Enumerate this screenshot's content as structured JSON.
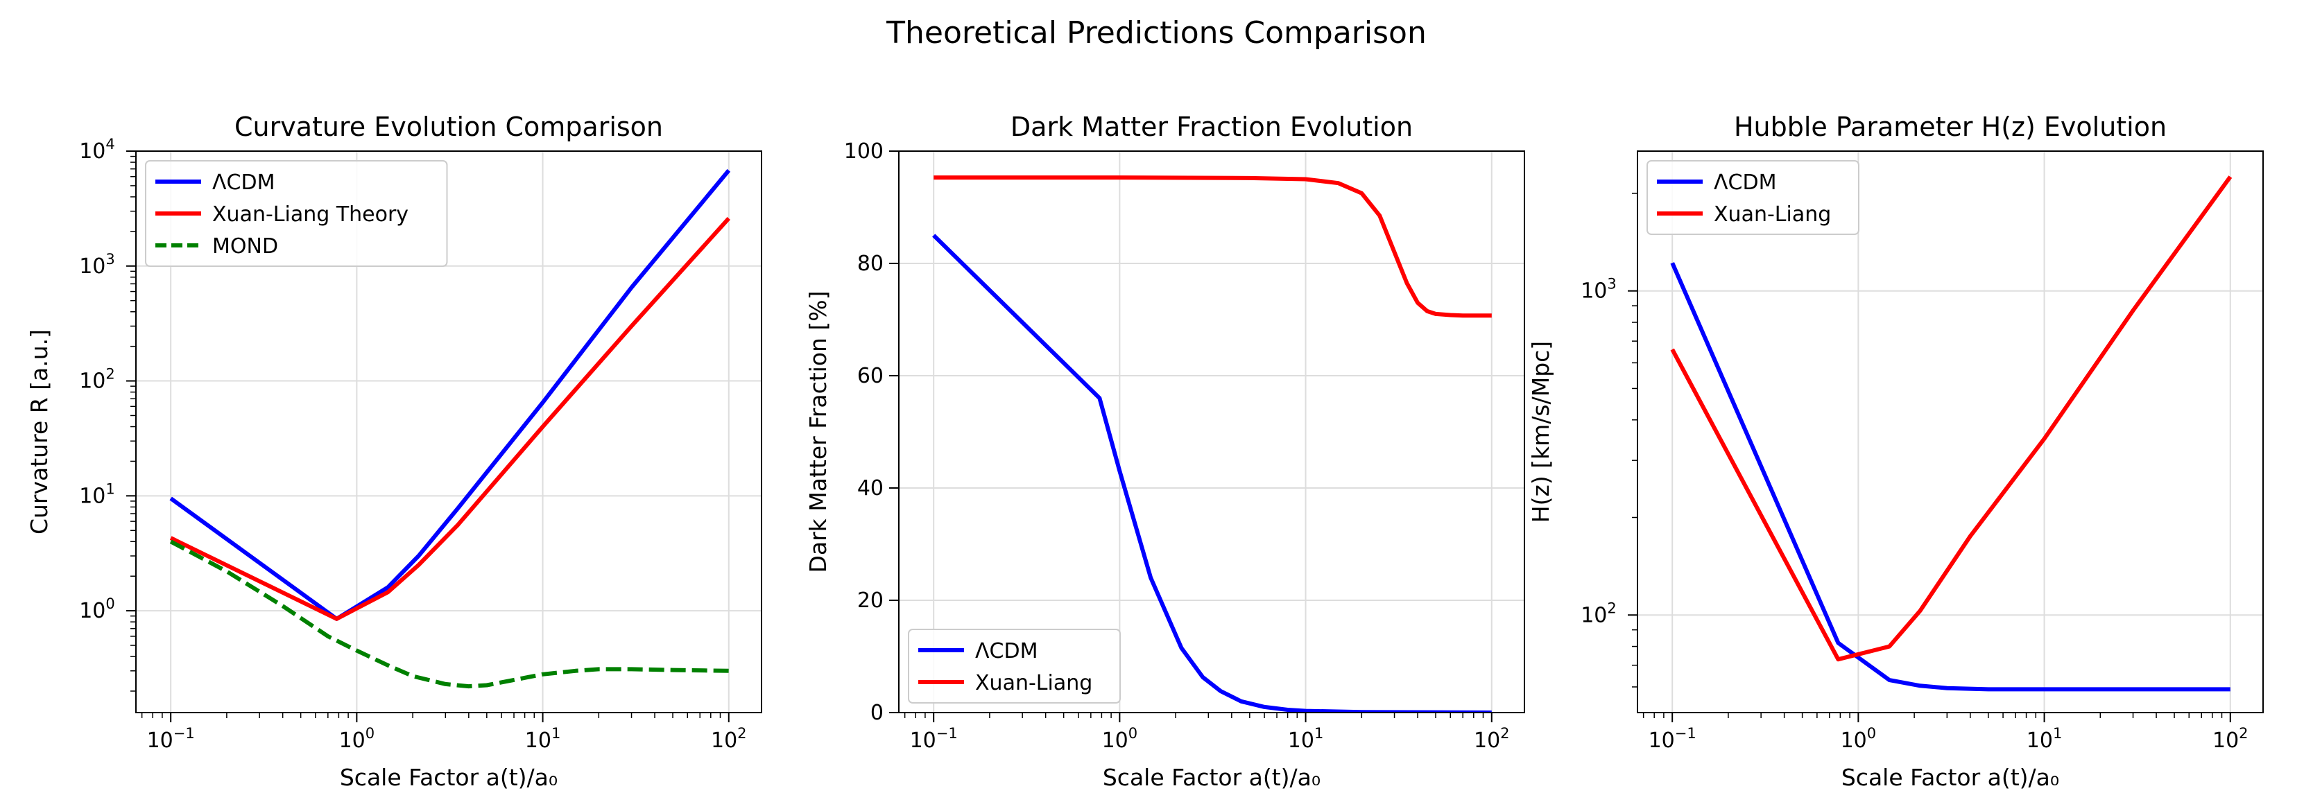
{
  "suptitle": "Theoretical Predictions Comparison",
  "colors": {
    "lcdm": "#0000ff",
    "xuan": "#ff0000",
    "mond": "#008000",
    "grid": "#dddddd"
  },
  "chart_data": [
    {
      "type": "line",
      "title": "Curvature Evolution Comparison",
      "xlabel": "Scale Factor a(t)/a₀",
      "ylabel": "Curvature R [a.u.]",
      "xscale": "log",
      "yscale": "log",
      "xlim": [
        0.065,
        150
      ],
      "ylim": [
        0.13,
        10000
      ],
      "xticks": [
        {
          "v": 0.1,
          "b": "10",
          "e": "−1"
        },
        {
          "v": 1,
          "b": "10",
          "e": "0"
        },
        {
          "v": 10,
          "b": "10",
          "e": "1"
        },
        {
          "v": 100,
          "b": "10",
          "e": "2"
        }
      ],
      "yticks": [
        {
          "v": 1,
          "b": "10",
          "e": "0"
        },
        {
          "v": 10,
          "b": "10",
          "e": "1"
        },
        {
          "v": 100,
          "b": "10",
          "e": "2"
        },
        {
          "v": 1000,
          "b": "10",
          "e": "3"
        },
        {
          "v": 10000,
          "b": "10",
          "e": "4"
        }
      ],
      "grid": true,
      "legend": "upper left",
      "series": [
        {
          "name": "ΛCDM",
          "color": "#0000ff",
          "dash": "solid",
          "x": [
            0.1,
            0.78,
            1.47,
            2.15,
            3.5,
            10,
            30,
            100
          ],
          "y": [
            9.5,
            0.85,
            1.6,
            3.0,
            7.8,
            65,
            650,
            6800
          ]
        },
        {
          "name": "Xuan-Liang Theory",
          "color": "#ff0000",
          "dash": "solid",
          "x": [
            0.1,
            0.78,
            1.47,
            2.15,
            3.5,
            10,
            30,
            100
          ],
          "y": [
            4.3,
            0.85,
            1.45,
            2.5,
            5.6,
            40,
            300,
            2600
          ]
        },
        {
          "name": "MOND",
          "color": "#008000",
          "dash": "dashed",
          "x": [
            0.1,
            0.2,
            0.4,
            0.7,
            1,
            1.5,
            2,
            3,
            4,
            5,
            7,
            10,
            15,
            20,
            30,
            50,
            100
          ],
          "y": [
            4.0,
            2.2,
            1.1,
            0.6,
            0.45,
            0.33,
            0.27,
            0.23,
            0.22,
            0.225,
            0.25,
            0.28,
            0.3,
            0.31,
            0.31,
            0.305,
            0.3
          ]
        }
      ]
    },
    {
      "type": "line",
      "title": "Dark Matter Fraction Evolution",
      "xlabel": "Scale Factor a(t)/a₀",
      "ylabel": "Dark Matter Fraction [%]",
      "xscale": "log",
      "yscale": "linear",
      "xlim": [
        0.065,
        150
      ],
      "ylim": [
        0,
        100
      ],
      "xticks": [
        {
          "v": 0.1,
          "b": "10",
          "e": "−1"
        },
        {
          "v": 1,
          "b": "10",
          "e": "0"
        },
        {
          "v": 10,
          "b": "10",
          "e": "1"
        },
        {
          "v": 100,
          "b": "10",
          "e": "2"
        }
      ],
      "yticks": [
        {
          "v": 0,
          "t": "0"
        },
        {
          "v": 20,
          "t": "20"
        },
        {
          "v": 40,
          "t": "40"
        },
        {
          "v": 60,
          "t": "60"
        },
        {
          "v": 80,
          "t": "80"
        },
        {
          "v": 100,
          "t": "100"
        }
      ],
      "grid": true,
      "legend": "lower left",
      "series": [
        {
          "name": "ΛCDM",
          "color": "#0000ff",
          "dash": "solid",
          "x": [
            0.1,
            0.78,
            1.0,
            1.47,
            2.15,
            2.8,
            3.5,
            4.5,
            6,
            8,
            10,
            20,
            50,
            100
          ],
          "y": [
            85,
            56,
            43,
            24,
            11.5,
            6.3,
            3.8,
            2.0,
            1.0,
            0.5,
            0.3,
            0.1,
            0.05,
            0.0
          ]
        },
        {
          "name": "Xuan-Liang",
          "color": "#ff0000",
          "dash": "solid",
          "x": [
            0.1,
            1,
            5,
            10,
            15,
            20,
            25,
            30,
            35,
            40,
            45,
            50,
            60,
            70,
            100
          ],
          "y": [
            95.3,
            95.3,
            95.2,
            95,
            94.3,
            92.5,
            88.5,
            82,
            76.5,
            73,
            71.5,
            71,
            70.8,
            70.7,
            70.7
          ]
        }
      ]
    },
    {
      "type": "line",
      "title": "Hubble Parameter H(z) Evolution",
      "xlabel": "Scale Factor a(t)/a₀",
      "ylabel": "H(z) [km/s/Mpc]",
      "xscale": "log",
      "yscale": "log",
      "xlim": [
        0.065,
        150
      ],
      "ylim": [
        50,
        2700
      ],
      "xticks": [
        {
          "v": 0.1,
          "b": "10",
          "e": "−1"
        },
        {
          "v": 1,
          "b": "10",
          "e": "0"
        },
        {
          "v": 10,
          "b": "10",
          "e": "1"
        },
        {
          "v": 100,
          "b": "10",
          "e": "2"
        }
      ],
      "yticks": [
        {
          "v": 100,
          "b": "10",
          "e": "2"
        },
        {
          "v": 1000,
          "b": "10",
          "e": "3"
        }
      ],
      "grid": true,
      "legend": "upper left",
      "series": [
        {
          "name": "ΛCDM",
          "color": "#0000ff",
          "dash": "solid",
          "x": [
            0.1,
            0.78,
            1.47,
            2.15,
            3,
            5,
            10,
            30,
            100
          ],
          "y": [
            1220,
            82,
            63,
            60.5,
            59.5,
            59,
            59,
            59,
            59
          ]
        },
        {
          "name": "Xuan-Liang",
          "color": "#ff0000",
          "dash": "solid",
          "x": [
            0.1,
            0.78,
            1.47,
            2.15,
            4,
            10,
            30,
            100
          ],
          "y": [
            660,
            73,
            80,
            103,
            175,
            350,
            870,
            2250
          ]
        }
      ]
    }
  ]
}
